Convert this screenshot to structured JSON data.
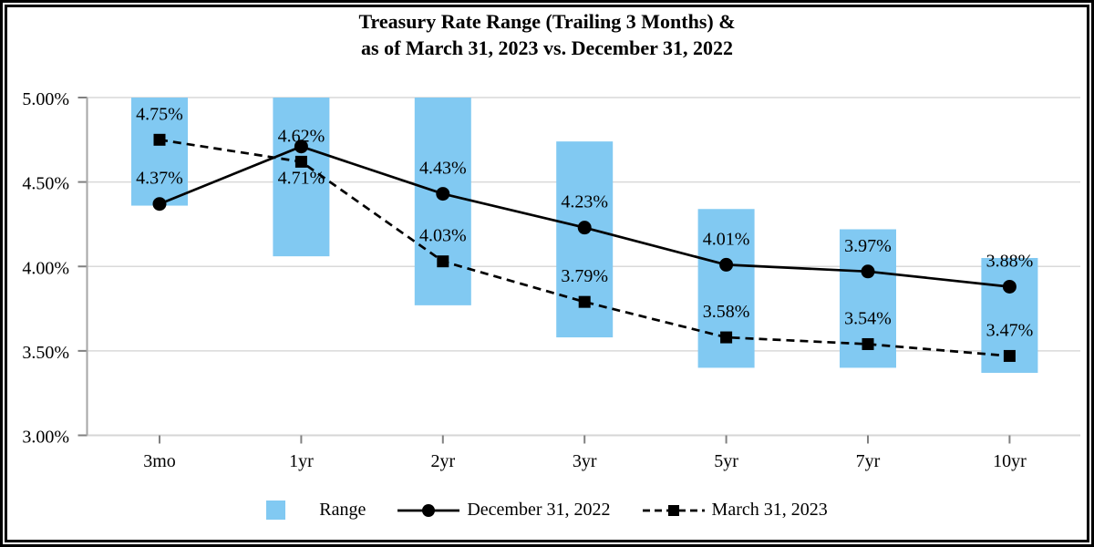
{
  "chart_data": {
    "type": "combo",
    "title_lines": [
      "Treasury Rate Range (Trailing 3 Months) &",
      "as of March 31, 2023 vs. December 31, 2022"
    ],
    "categories": [
      "3mo",
      "1yr",
      "2yr",
      "3yr",
      "5yr",
      "7yr",
      "10yr"
    ],
    "series": [
      {
        "name": "Range",
        "type": "floating-bar",
        "color": "#81C9F2",
        "ranges": [
          [
            4.36,
            5.0
          ],
          [
            4.06,
            5.0
          ],
          [
            3.77,
            5.0
          ],
          [
            3.58,
            4.74
          ],
          [
            3.4,
            4.34
          ],
          [
            3.4,
            4.22
          ],
          [
            3.37,
            4.05
          ]
        ]
      },
      {
        "name": "December 31, 2022",
        "type": "line",
        "line_style": "solid",
        "marker": "circle",
        "color": "#000000",
        "values": [
          4.37,
          4.71,
          4.43,
          4.23,
          4.01,
          3.97,
          3.88
        ],
        "labels": [
          "4.37%",
          "4.71%",
          "4.43%",
          "4.23%",
          "4.01%",
          "3.97%",
          "3.88%"
        ]
      },
      {
        "name": "March 31, 2023",
        "type": "line",
        "line_style": "dashed",
        "marker": "square",
        "color": "#000000",
        "values": [
          4.75,
          4.62,
          4.03,
          3.79,
          3.58,
          3.54,
          3.47
        ],
        "labels": [
          "4.75%",
          "4.62%",
          "4.03%",
          "3.79%",
          "3.58%",
          "3.54%",
          "3.47%"
        ]
      }
    ],
    "y_axis": {
      "min": 3.0,
      "max": 5.0,
      "tick_values": [
        5.0,
        4.5,
        4.0,
        3.5,
        3.0
      ],
      "tick_labels": [
        "5.00%",
        "4.50%",
        "4.00%",
        "3.50%",
        "3.00%"
      ]
    },
    "grid": true,
    "legend_position": "bottom",
    "colors": {
      "range_fill": "#81C9F2",
      "line": "#000000",
      "gridline": "#D9D9D9",
      "axis_line": "#A6A6A6",
      "tick_mark": "#808080",
      "x_axis_line": "#D6D6D6"
    }
  }
}
